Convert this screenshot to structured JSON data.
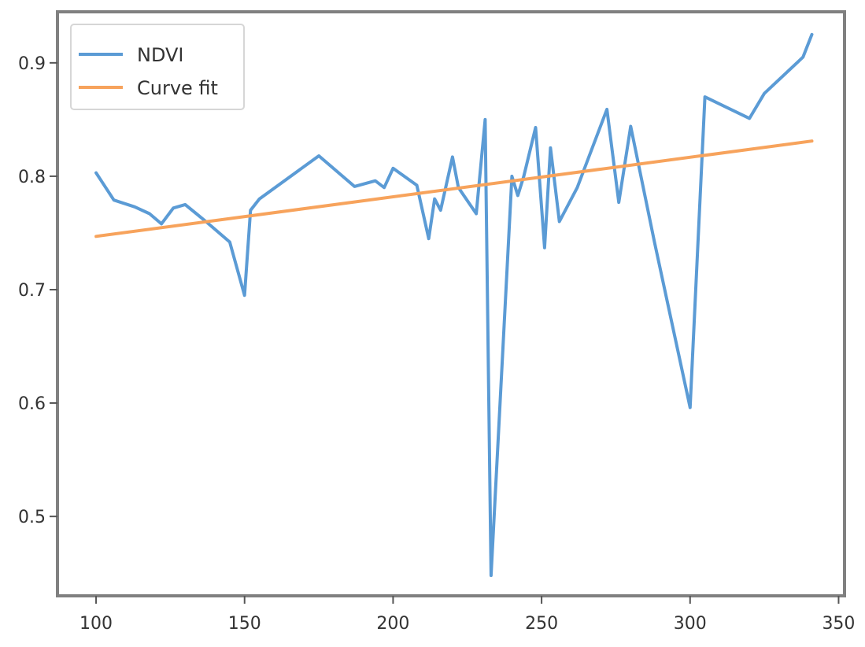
{
  "chart_data": {
    "type": "line",
    "title": "",
    "xlabel": "",
    "ylabel": "",
    "xlim": [
      87,
      352
    ],
    "ylim": [
      0.43,
      0.945
    ],
    "xticks": [
      100,
      150,
      200,
      250,
      300,
      350
    ],
    "yticks": [
      0.5,
      0.6,
      0.7,
      0.8,
      0.9
    ],
    "x_tick_labels": [
      "100",
      "150",
      "200",
      "250",
      "300",
      "350"
    ],
    "y_tick_labels": [
      "0.5",
      "0.6",
      "0.7",
      "0.8",
      "0.9"
    ],
    "grid": false,
    "legend": "top-left",
    "series": [
      {
        "name": "NDVI",
        "color": "#5b9bd5",
        "x": [
          100,
          106,
          113,
          118,
          122,
          126,
          130,
          137,
          145,
          150,
          152,
          155,
          175,
          187,
          194,
          197,
          200,
          208,
          212,
          214,
          216,
          220,
          222,
          228,
          231,
          233,
          240,
          242,
          244,
          248,
          251,
          253,
          256,
          262,
          272,
          276,
          280,
          288,
          300,
          305,
          320,
          325,
          338,
          341
        ],
        "y": [
          0.803,
          0.779,
          0.773,
          0.767,
          0.758,
          0.772,
          0.775,
          0.76,
          0.742,
          0.695,
          0.77,
          0.78,
          0.818,
          0.791,
          0.796,
          0.79,
          0.807,
          0.792,
          0.745,
          0.78,
          0.77,
          0.817,
          0.79,
          0.767,
          0.85,
          0.448,
          0.8,
          0.783,
          0.8,
          0.843,
          0.737,
          0.825,
          0.76,
          0.79,
          0.859,
          0.777,
          0.844,
          0.742,
          0.596,
          0.87,
          0.851,
          0.873,
          0.905,
          0.925
        ]
      },
      {
        "name": "Curve fit",
        "color": "#f7a35c",
        "x": [
          100,
          341
        ],
        "y": [
          0.747,
          0.831
        ]
      }
    ]
  }
}
